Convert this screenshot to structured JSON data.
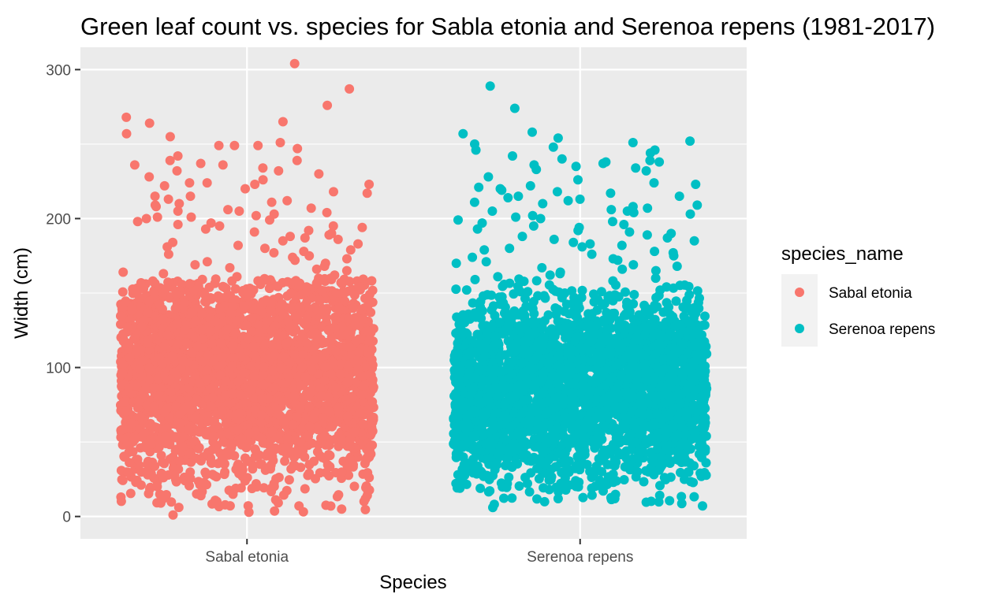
{
  "chart_data": {
    "type": "scatter",
    "title": "Green leaf count vs. species for Sabla etonia and Serenoa repens (1981-2017)",
    "xlabel": "Species",
    "ylabel": "Width (cm)",
    "categories": [
      "Sabal etonia",
      "Serenoa repens"
    ],
    "ylim": [
      -15,
      315
    ],
    "yticks": [
      0,
      100,
      200,
      300
    ],
    "grid": true,
    "jitter": true,
    "legend": {
      "title": "species_name",
      "placement": "right"
    },
    "colors": {
      "Sabal etonia": "#F8766D",
      "Serenoa repens": "#00BFC4"
    },
    "series": [
      {
        "name": "Sabal etonia",
        "distribution": {
          "min": 1,
          "max": 304,
          "center": 95,
          "n": 3000
        },
        "outliers": [
          304,
          287,
          276,
          268,
          265,
          264,
          257,
          255,
          251,
          249,
          249,
          249,
          247,
          242,
          239,
          239,
          237,
          236,
          236,
          234,
          232,
          232,
          230,
          228,
          226,
          224,
          224,
          223,
          223,
          222,
          220,
          218,
          217,
          215,
          215,
          213,
          212,
          211,
          210,
          209,
          208,
          207,
          206,
          205,
          205,
          204,
          203,
          202,
          201,
          201,
          200,
          199,
          198,
          197,
          196,
          195,
          195,
          194,
          193,
          192,
          191,
          190,
          189,
          188,
          187,
          186,
          185,
          184,
          183,
          182,
          181,
          180,
          179,
          178,
          177,
          176,
          175,
          174,
          173,
          172,
          171,
          170,
          169,
          168,
          167,
          166,
          165,
          164,
          163,
          162,
          161,
          160
        ]
      },
      {
        "name": "Serenoa repens",
        "distribution": {
          "min": 6,
          "max": 289,
          "center": 85,
          "n": 3000
        },
        "outliers": [
          289,
          274,
          258,
          257,
          254,
          252,
          251,
          250,
          248,
          246,
          246,
          244,
          242,
          240,
          239,
          238,
          238,
          237,
          236,
          235,
          234,
          233,
          232,
          228,
          226,
          224,
          223,
          222,
          221,
          220,
          219,
          218,
          217,
          215,
          215,
          214,
          213,
          212,
          211,
          210,
          209,
          208,
          207,
          206,
          205,
          205,
          204,
          203,
          202,
          201,
          200,
          199,
          198,
          197,
          196,
          195,
          194,
          193,
          192,
          191,
          190,
          189,
          188,
          187,
          186,
          185,
          184,
          183,
          182,
          181,
          180,
          179,
          178,
          177,
          176,
          175,
          174,
          173,
          172,
          171,
          170,
          169,
          168,
          167,
          166,
          165,
          164,
          163,
          162,
          161,
          160
        ]
      }
    ]
  }
}
